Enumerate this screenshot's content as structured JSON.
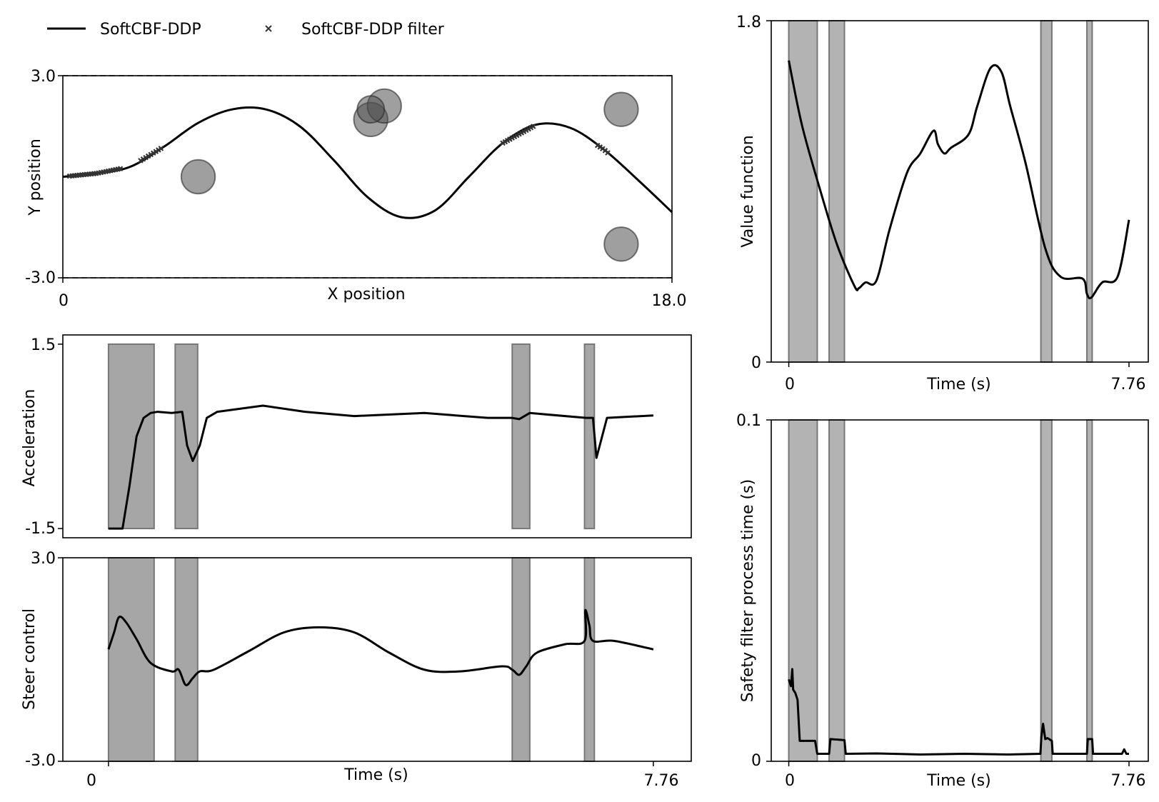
{
  "legend": {
    "line_label": "SoftCBF-DDP",
    "marker_label": "SoftCBF-DDP filter"
  },
  "chart_data": [
    {
      "id": "trajectory",
      "type": "line",
      "xlabel": "X position",
      "ylabel": "Y position",
      "xlim": [
        0,
        18
      ],
      "ylim": [
        -3,
        3
      ],
      "xticks": [
        "0",
        "18.0"
      ],
      "yticks": [
        "-3.0",
        "3.0"
      ],
      "bounds": [
        -3,
        3
      ],
      "x": [
        0,
        1,
        2,
        3,
        4,
        5,
        6,
        7,
        8,
        9,
        10,
        11,
        12,
        13,
        14,
        15,
        16,
        17,
        18
      ],
      "y": [
        0.0,
        0.1,
        0.3,
        0.9,
        1.6,
        2.0,
        2.0,
        1.5,
        0.5,
        -0.6,
        -1.2,
        -1.0,
        0.0,
        1.0,
        1.55,
        1.45,
        0.8,
        -0.1,
        -1.05
      ],
      "obstacles": [
        {
          "x": 4.0,
          "y": 0.0,
          "r": 0.5
        },
        {
          "x": 9.1,
          "y": 1.7,
          "r": 0.5
        },
        {
          "x": 9.5,
          "y": 2.1,
          "r": 0.5
        },
        {
          "x": 9.1,
          "y": 2.0,
          "r": 0.4
        },
        {
          "x": 16.5,
          "y": 2.0,
          "r": 0.5
        },
        {
          "x": 16.5,
          "y": -2.0,
          "r": 0.5
        }
      ],
      "filter_segments": [
        [
          0.2,
          1.7
        ],
        [
          2.3,
          2.9
        ],
        [
          13.0,
          13.9
        ],
        [
          15.8,
          16.1
        ]
      ]
    },
    {
      "id": "acceleration",
      "type": "line",
      "xlabel": "",
      "ylabel": "Acceleration",
      "xlim": [
        -0.65,
        8.3
      ],
      "ylim": [
        -1.65,
        1.65
      ],
      "yticks": [
        "-1.5",
        "1.5"
      ],
      "t": [
        0.0,
        0.2,
        0.3,
        0.4,
        0.5,
        0.6,
        0.7,
        0.9,
        1.05,
        1.12,
        1.2,
        1.3,
        1.4,
        1.55,
        2.2,
        2.8,
        3.5,
        4.5,
        5.4,
        5.75,
        5.85,
        6.0,
        6.8,
        6.9,
        6.95,
        7.1,
        7.76
      ],
      "values": [
        -1.5,
        -1.5,
        -0.8,
        0.0,
        0.3,
        0.38,
        0.4,
        0.38,
        0.4,
        -0.15,
        -0.4,
        -0.15,
        0.3,
        0.4,
        0.5,
        0.4,
        0.33,
        0.38,
        0.3,
        0.3,
        0.28,
        0.38,
        0.3,
        0.3,
        -0.35,
        0.3,
        0.34
      ],
      "shaded": [
        [
          0.0,
          0.65
        ],
        [
          0.95,
          1.27
        ],
        [
          5.75,
          6.0
        ],
        [
          6.78,
          6.92
        ]
      ]
    },
    {
      "id": "steer",
      "type": "line",
      "xlabel": "Time (s)",
      "ylabel": "Steer control",
      "xlim": [
        -0.65,
        8.3
      ],
      "ylim": [
        -3,
        3
      ],
      "xticks": [
        "0",
        "7.76"
      ],
      "yticks": [
        "-3.0",
        "3.0"
      ],
      "t": [
        0.0,
        0.08,
        0.15,
        0.25,
        0.4,
        0.6,
        0.9,
        1.0,
        1.1,
        1.2,
        1.3,
        1.5,
        2.0,
        2.5,
        3.0,
        3.5,
        4.0,
        4.5,
        5.0,
        5.6,
        5.75,
        5.85,
        5.95,
        6.1,
        6.5,
        6.78,
        6.79,
        6.85,
        6.9,
        7.2,
        7.76
      ],
      "values": [
        0.3,
        0.8,
        1.25,
        1.1,
        0.6,
        -0.1,
        -0.35,
        -0.3,
        -0.75,
        -0.55,
        -0.35,
        -0.3,
        0.25,
        0.8,
        0.95,
        0.8,
        0.2,
        -0.3,
        -0.35,
        -0.2,
        -0.3,
        -0.45,
        -0.2,
        0.2,
        0.45,
        0.55,
        1.45,
        1.0,
        0.55,
        0.55,
        0.3
      ],
      "shaded": [
        [
          0.0,
          0.65
        ],
        [
          0.95,
          1.27
        ],
        [
          5.75,
          6.0
        ],
        [
          6.78,
          6.92
        ]
      ]
    },
    {
      "id": "value_function",
      "type": "line",
      "xlabel": "Time (s)",
      "ylabel": "Value function",
      "xlim": [
        -0.4,
        8.2
      ],
      "ylim": [
        0,
        1.8
      ],
      "xticks": [
        "0",
        "7.76"
      ],
      "yticks": [
        "0",
        "1.8"
      ],
      "t": [
        0.0,
        0.3,
        0.7,
        1.1,
        1.5,
        1.6,
        1.75,
        2.0,
        2.3,
        2.7,
        3.0,
        3.3,
        3.4,
        3.55,
        3.7,
        4.1,
        4.3,
        4.6,
        4.85,
        5.05,
        5.4,
        5.85,
        6.2,
        6.7,
        6.8,
        6.9,
        7.15,
        7.5,
        7.76
      ],
      "values": [
        1.59,
        1.25,
        0.92,
        0.62,
        0.4,
        0.39,
        0.42,
        0.43,
        0.7,
        1.0,
        1.1,
        1.22,
        1.15,
        1.1,
        1.13,
        1.2,
        1.35,
        1.55,
        1.53,
        1.35,
        1.05,
        0.6,
        0.45,
        0.44,
        0.36,
        0.34,
        0.42,
        0.45,
        0.75
      ],
      "shaded": [
        [
          0.0,
          0.65
        ],
        [
          0.92,
          1.27
        ],
        [
          5.75,
          6.0
        ],
        [
          6.8,
          6.92
        ]
      ]
    },
    {
      "id": "process_time",
      "type": "line",
      "xlabel": "Time (s)",
      "ylabel": "Safety filter process time (s)",
      "xlim": [
        -0.4,
        8.2
      ],
      "ylim": [
        0,
        0.1
      ],
      "xticks": [
        "0",
        "7.76"
      ],
      "yticks": [
        "0",
        "0.1"
      ],
      "t": [
        0.0,
        0.05,
        0.08,
        0.1,
        0.15,
        0.2,
        0.25,
        0.3,
        0.35,
        0.6,
        0.65,
        0.92,
        0.95,
        1.27,
        1.3,
        2.0,
        3.0,
        4.0,
        5.0,
        5.74,
        5.76,
        5.8,
        5.85,
        5.9,
        6.0,
        6.02,
        6.8,
        6.82,
        6.92,
        6.94,
        7.6,
        7.65,
        7.7,
        7.76
      ],
      "values": [
        0.024,
        0.022,
        0.027,
        0.021,
        0.02,
        0.018,
        0.006,
        0.006,
        0.006,
        0.006,
        0.0022,
        0.0022,
        0.0065,
        0.0062,
        0.0022,
        0.0023,
        0.002,
        0.0022,
        0.002,
        0.0022,
        0.007,
        0.011,
        0.0065,
        0.0068,
        0.006,
        0.0022,
        0.0022,
        0.0065,
        0.0065,
        0.0022,
        0.0022,
        0.0035,
        0.0022,
        0.0022
      ],
      "shaded": [
        [
          0.0,
          0.65
        ],
        [
          0.92,
          1.27
        ],
        [
          5.75,
          6.0
        ],
        [
          6.8,
          6.92
        ]
      ]
    }
  ]
}
